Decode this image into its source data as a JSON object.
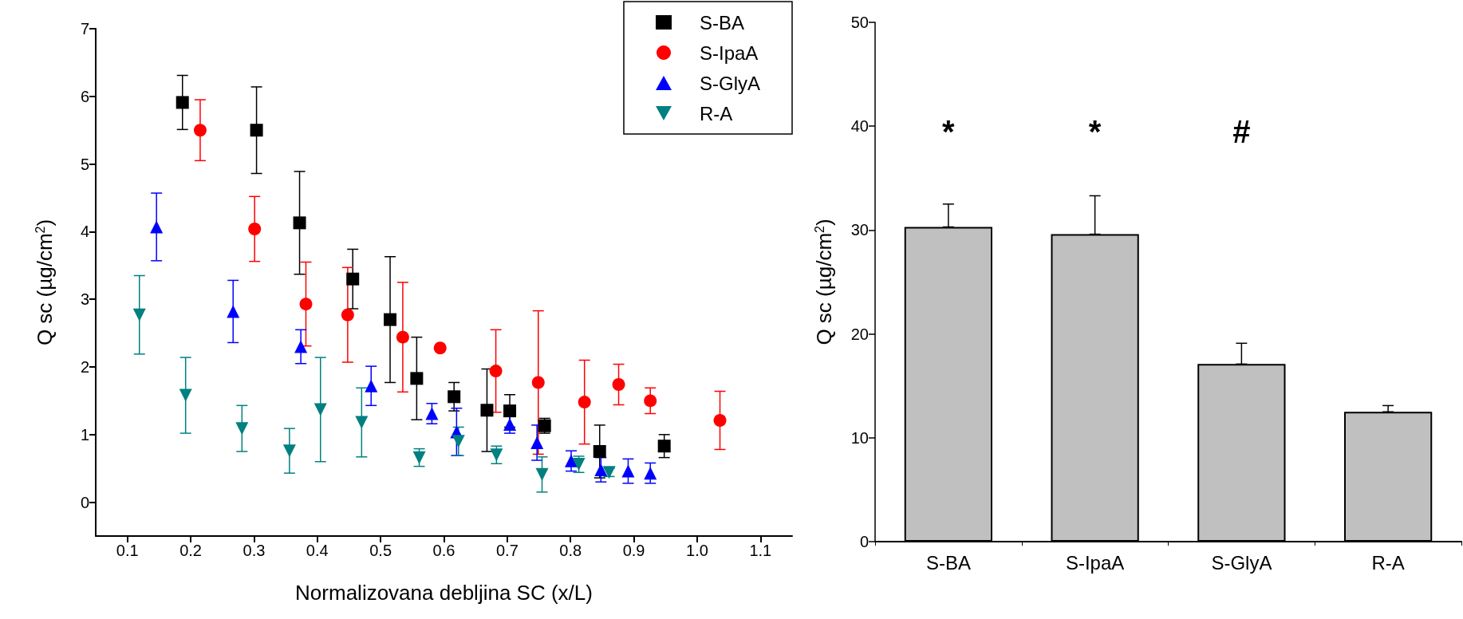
{
  "chart_data": [
    {
      "type": "scatter",
      "xlabel": "Normalizovana debljina SC (x/L)",
      "ylabel": "Q sc (µg/cm$^{2}$)",
      "xlim": [
        0.05,
        1.15
      ],
      "xticks": [
        0.1,
        0.2,
        0.3,
        0.4,
        0.5,
        0.6,
        0.7,
        0.8,
        0.9,
        {
          "value": 1.0,
          "label": "1.0"
        },
        1.1
      ],
      "ylim": [
        -0.5,
        7
      ],
      "yticks": [
        0,
        1,
        2,
        3,
        4,
        5,
        6,
        7
      ],
      "grid": false,
      "legend": "top right",
      "series": [
        {
          "name": "S-BA",
          "color": "#000000",
          "marker": "square",
          "x": [
            0.187,
            0.304,
            0.372,
            0.456,
            0.515,
            0.557,
            0.616,
            0.668,
            0.704,
            0.759,
            0.846,
            0.948
          ],
          "values": [
            5.91,
            5.5,
            4.13,
            3.3,
            2.7,
            1.83,
            1.56,
            1.36,
            1.35,
            1.13,
            0.75,
            0.83
          ],
          "errors": [
            0.4,
            0.64,
            0.76,
            0.44,
            0.93,
            0.61,
            0.21,
            0.61,
            0.24,
            0.11,
            0.39,
            0.17
          ]
        },
        {
          "name": "S-IpaA",
          "color": "#ff0000",
          "marker": "circle",
          "x": [
            0.215,
            0.301,
            0.382,
            0.448,
            0.535,
            0.594,
            0.682,
            0.749,
            0.822,
            0.876,
            0.926,
            1.036
          ],
          "values": [
            5.5,
            4.04,
            2.93,
            2.77,
            2.44,
            2.28,
            1.94,
            1.77,
            1.48,
            1.74,
            1.5,
            1.21
          ],
          "errors": [
            0.45,
            0.48,
            0.62,
            0.7,
            0.81,
            null,
            0.61,
            1.06,
            0.62,
            0.3,
            0.19,
            0.43
          ]
        },
        {
          "name": "S-GlyA",
          "color": "#0000ff",
          "marker": "triangle",
          "x": [
            0.146,
            0.267,
            0.374,
            0.485,
            0.581,
            0.62,
            0.704,
            0.747,
            0.801,
            0.848,
            0.891,
            0.926
          ],
          "values": [
            4.07,
            2.82,
            2.3,
            1.72,
            1.31,
            1.04,
            1.15,
            0.88,
            0.61,
            0.48,
            0.46,
            0.43
          ],
          "errors": [
            0.5,
            0.46,
            0.25,
            0.29,
            0.15,
            0.35,
            0.13,
            0.26,
            0.15,
            0.18,
            0.18,
            0.15
          ]
        },
        {
          "name": "R-A",
          "color": "#008080",
          "marker": "triangle-down",
          "x": [
            0.119,
            0.192,
            0.281,
            0.356,
            0.405,
            0.47,
            0.561,
            0.623,
            0.683,
            0.755,
            0.813,
            0.861
          ],
          "values": [
            2.77,
            1.58,
            1.09,
            0.76,
            1.37,
            1.18,
            0.66,
            0.9,
            0.7,
            0.41,
            0.56,
            0.44
          ],
          "errors": [
            0.58,
            0.56,
            0.34,
            0.33,
            0.77,
            0.51,
            0.13,
            0.21,
            0.13,
            0.26,
            0.12,
            0.06
          ]
        }
      ]
    },
    {
      "type": "bar",
      "ylabel": "Q sc (µg/cm$^{2}$)",
      "categories": [
        "S-BA",
        "S-IpaA",
        "S-GlyA",
        "R-A"
      ],
      "values": [
        30.3,
        29.6,
        17.1,
        12.5
      ],
      "errors": [
        [
          30.3,
          32.5
        ],
        [
          29.6,
          33.3
        ],
        [
          17.1,
          19.1
        ],
        [
          12.5,
          13.1
        ]
      ],
      "color": "#c0c0c0",
      "ylim": [
        0,
        50
      ],
      "yticks": [
        0,
        10,
        20,
        30,
        40,
        50
      ],
      "grid": false,
      "legend": false,
      "annotations": [
        "*",
        "*",
        "#"
      ]
    }
  ]
}
